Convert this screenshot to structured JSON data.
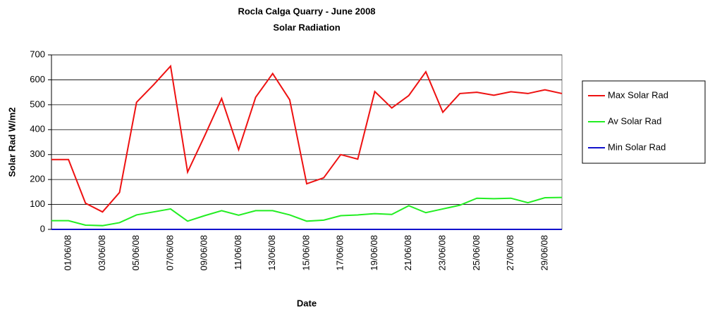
{
  "chart_data": {
    "type": "line",
    "title": "Rocla Calga Quarry - June 2008",
    "subtitle": "Solar Radiation",
    "x_label": "Date",
    "y_label": "Solar Rad W/m2",
    "categories": [
      null,
      "01/06/08",
      null,
      "03/06/08",
      null,
      "05/06/08",
      null,
      "07/06/08",
      null,
      "09/06/08",
      null,
      "11/06/08",
      null,
      "13/06/08",
      null,
      "15/06/08",
      null,
      "17/06/08",
      null,
      "19/06/08",
      null,
      "21/06/08",
      null,
      "23/06/08",
      null,
      "25/06/08",
      null,
      "27/06/08",
      null,
      "29/06/08",
      null
    ],
    "series": [
      {
        "name": "Max Solar Rad",
        "color": "#ee1111",
        "values": [
          280,
          280,
          105,
          70,
          148,
          510,
          580,
          655,
          230,
          375,
          525,
          320,
          530,
          625,
          520,
          183,
          207,
          300,
          282,
          553,
          487,
          537,
          632,
          470,
          545,
          550,
          538,
          552,
          545,
          560,
          545
        ]
      },
      {
        "name": "Av Solar Rad",
        "color": "#22ee22",
        "values": [
          35,
          35,
          17,
          15,
          27,
          58,
          70,
          82,
          33,
          55,
          75,
          57,
          75,
          75,
          58,
          33,
          37,
          55,
          58,
          63,
          60,
          95,
          67,
          82,
          97,
          125,
          123,
          125,
          107,
          127,
          128
        ]
      },
      {
        "name": "Min Solar Rad",
        "color": "#1111cc",
        "values": [
          0,
          0,
          0,
          0,
          0,
          0,
          0,
          0,
          0,
          0,
          0,
          0,
          0,
          0,
          0,
          0,
          0,
          0,
          0,
          0,
          0,
          0,
          0,
          0,
          0,
          0,
          0,
          0,
          0,
          0,
          0
        ]
      }
    ],
    "ylim": [
      0,
      700
    ],
    "yticks": [
      0,
      100,
      200,
      300,
      400,
      500,
      600,
      700
    ],
    "grid": true,
    "legend": "right"
  }
}
